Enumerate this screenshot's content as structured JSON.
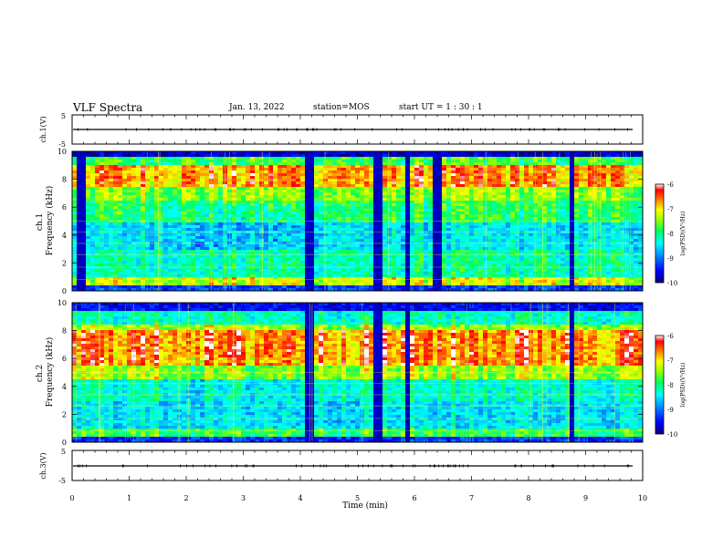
{
  "header": {
    "title": "VLF Spectra",
    "date": "Jan. 13, 2022",
    "station": "station=MOS",
    "start": "start  UT =   1 : 30 : 1"
  },
  "chart_data": [
    {
      "type": "line",
      "name": "ch.1 waveform",
      "ylabel": "ch.1(V)",
      "ylim": [
        -5,
        5
      ],
      "yticks": [
        "5",
        "-5"
      ],
      "baseline": 0
    },
    {
      "type": "heatmap",
      "name": "ch.1 spectrogram",
      "ylabel": "ch.1\nFrequency  (kHz)",
      "ylabel_lines": [
        "ch.1",
        "Frequency  (kHz)"
      ],
      "xlim": [
        0,
        10
      ],
      "ylim": [
        0,
        10
      ],
      "yticks": [
        "0",
        "2",
        "4",
        "6",
        "8",
        "10"
      ],
      "intense_band_khz": [
        7.5,
        9.0
      ],
      "gap_minutes": [
        [
          0.1,
          0.2
        ],
        [
          4.05,
          4.25
        ],
        [
          5.3,
          5.4
        ],
        [
          5.85,
          5.9
        ],
        [
          6.35,
          6.45
        ],
        [
          8.7,
          8.8
        ]
      ]
    },
    {
      "type": "heatmap",
      "name": "ch.2 spectrogram",
      "ylabel": "ch.2\nFrequency  (kHz)",
      "ylabel_lines": [
        "ch.2",
        "Frequency  (kHz)"
      ],
      "xlim": [
        0,
        10
      ],
      "ylim": [
        0,
        10
      ],
      "yticks": [
        "0",
        "2",
        "4",
        "6",
        "8",
        "10"
      ],
      "intense_band_khz": [
        5.5,
        8.0
      ],
      "gap_minutes": [
        [
          4.05,
          4.25
        ],
        [
          5.3,
          5.4
        ],
        [
          5.85,
          5.9
        ],
        [
          8.7,
          8.8
        ]
      ]
    },
    {
      "type": "line",
      "name": "ch.3 waveform",
      "ylabel": "ch.3(V)",
      "ylim": [
        -5,
        5
      ],
      "yticks": [
        "5",
        "-5"
      ],
      "baseline": 0
    }
  ],
  "x_axis": {
    "label": "Time  (min)",
    "ticks": [
      "0",
      "1",
      "2",
      "3",
      "4",
      "5",
      "6",
      "7",
      "8",
      "9",
      "10"
    ]
  },
  "colorbars": [
    {
      "label": "log(PSD)(V²/Hz)",
      "ticks": [
        "-6",
        "-7",
        "-8",
        "-9",
        "-10"
      ]
    },
    {
      "label": "log(PSD)(V²/Hz)",
      "ticks": [
        "-6",
        "-7",
        "-8",
        "-9",
        "-10"
      ]
    }
  ],
  "colors": {
    "colormap": [
      "#000080",
      "#0000ff",
      "#0080ff",
      "#00ffff",
      "#00ff80",
      "#80ff00",
      "#ffff00",
      "#ff8000",
      "#ff0000",
      "#ffffff"
    ]
  }
}
